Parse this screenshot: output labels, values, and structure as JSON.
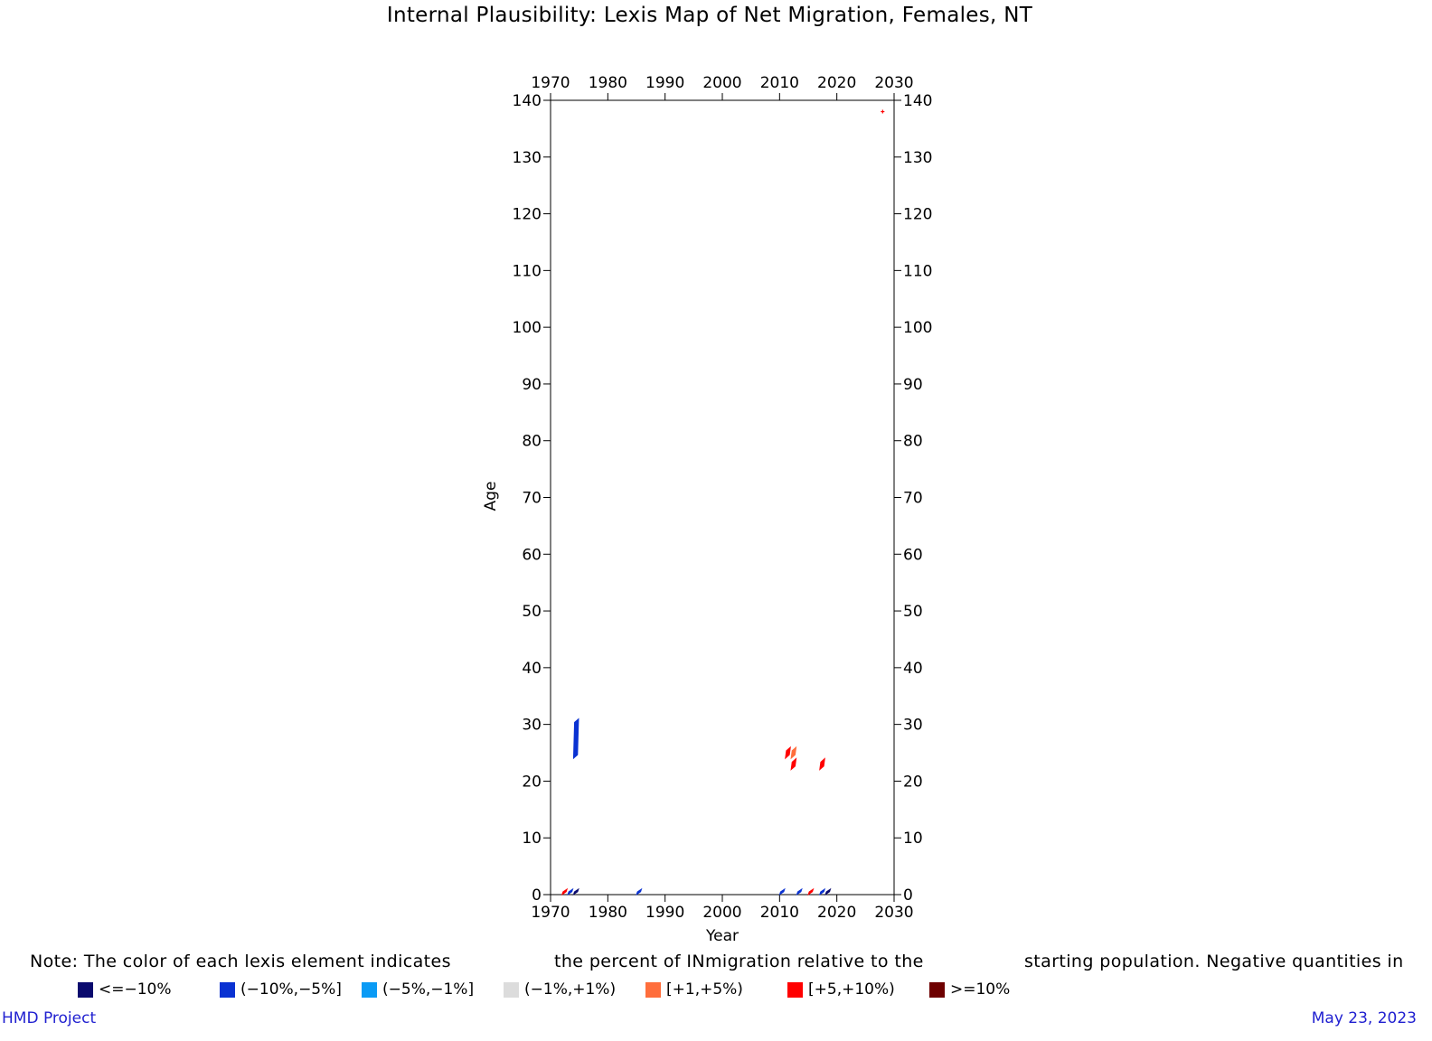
{
  "title": "Internal Plausibility: Lexis Map of Net Migration, Females, NT",
  "note": {
    "part1": "Note: The color of each lexis element indicates",
    "part2": "the percent of INmigration relative to the",
    "part3": "starting population.  Negative quantities in"
  },
  "legend": [
    {
      "label": "<=−10%",
      "color": "#0a0a6e"
    },
    {
      "label": "(−10%,−5%]",
      "color": "#0a32d2"
    },
    {
      "label": "(−5%,−1%]",
      "color": "#0a9bf5"
    },
    {
      "label": "(−1%,+1%)",
      "color": "#dcdcdc"
    },
    {
      "label": "[+1,+5%)",
      "color": "#ff6e3c"
    },
    {
      "label": "[+5,+10%)",
      "color": "#ff0000"
    },
    {
      "label": ">=10%",
      "color": "#6e0000"
    }
  ],
  "footer": {
    "left": "HMD Project",
    "right": "May 23, 2023"
  },
  "chart_data": {
    "type": "heatmap",
    "xlabel": "Year",
    "ylabel": "Age",
    "xlim": [
      1970,
      2030
    ],
    "ylim": [
      0,
      140
    ],
    "xticks": [
      1970,
      1980,
      1990,
      2000,
      2010,
      2020,
      2030
    ],
    "yticks": [
      0,
      10,
      20,
      30,
      40,
      50,
      60,
      70,
      80,
      90,
      100,
      110,
      120,
      130,
      140
    ],
    "cells": [
      {
        "year": 1974,
        "age_from": 24,
        "age_to": 31,
        "class": "(−10%,−5%]",
        "color": "#0a32d2"
      },
      {
        "year": 1972,
        "age_from": 0,
        "age_to": 1,
        "class": "[+5,+10%)",
        "color": "#ff0000"
      },
      {
        "year": 1973,
        "age_from": 0,
        "age_to": 1,
        "class": "(−10%,−5%]",
        "color": "#0a32d2"
      },
      {
        "year": 1974,
        "age_from": 0,
        "age_to": 1,
        "class": "<=−10%",
        "color": "#0a0a6e"
      },
      {
        "year": 1985,
        "age_from": 0,
        "age_to": 1,
        "class": "(−10%,−5%]",
        "color": "#0a32d2"
      },
      {
        "year": 2010,
        "age_from": 0,
        "age_to": 1,
        "class": "(−10%,−5%]",
        "color": "#0a32d2"
      },
      {
        "year": 2013,
        "age_from": 0,
        "age_to": 1,
        "class": "(−10%,−5%]",
        "color": "#0a32d2"
      },
      {
        "year": 2015,
        "age_from": 0,
        "age_to": 1,
        "class": "[+5,+10%)",
        "color": "#ff0000"
      },
      {
        "year": 2017,
        "age_from": 0,
        "age_to": 1,
        "class": "(−10%,−5%]",
        "color": "#0a32d2"
      },
      {
        "year": 2018,
        "age_from": 0,
        "age_to": 1,
        "class": "<=−10%",
        "color": "#0a0a6e"
      },
      {
        "year": 2011,
        "age_from": 24,
        "age_to": 26,
        "class": "[+5,+10%)",
        "color": "#ff0000"
      },
      {
        "year": 2012,
        "age_from": 24,
        "age_to": 26,
        "class": "[+1,+5%)",
        "color": "#ff6e3c"
      },
      {
        "year": 2012,
        "age_from": 22,
        "age_to": 24,
        "class": "[+5,+10%)",
        "color": "#ff0000"
      },
      {
        "year": 2017,
        "age_from": 22,
        "age_to": 24,
        "class": "[+5,+10%)",
        "color": "#ff0000"
      },
      {
        "year": 2028,
        "age_from": 138,
        "age_to": 138,
        "class": "[+5,+10%)",
        "color": "#ff0000"
      }
    ]
  }
}
